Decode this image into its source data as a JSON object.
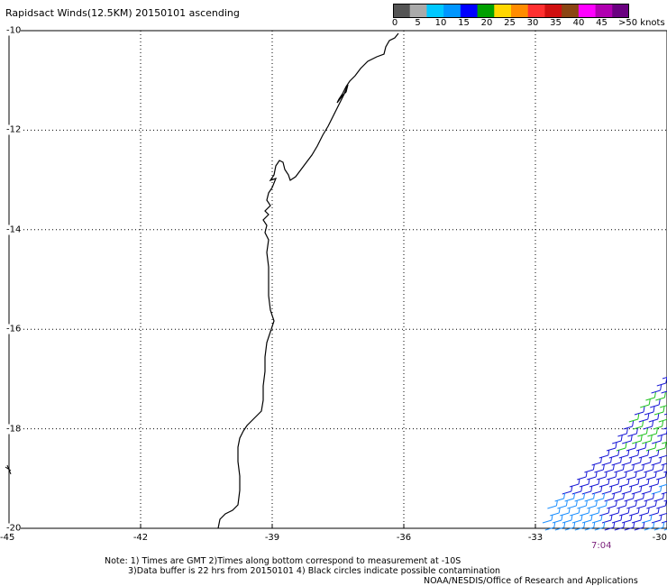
{
  "title": "Rapidsact Winds(12.5KM) 20150101 ascending",
  "colorbar": {
    "units": ">50 knots",
    "ticks": [
      "0",
      "5",
      "10",
      "15",
      "20",
      "25",
      "30",
      "35",
      "40",
      "45"
    ],
    "colors": [
      "#555555",
      "#aaaaaa",
      "#00c8ff",
      "#0096ff",
      "#0000ff",
      "#00a000",
      "#ffd700",
      "#ff8c00",
      "#ff3030",
      "#d01010",
      "#8b4513",
      "#ff00ff",
      "#b000b0",
      "#6a0080"
    ]
  },
  "map": {
    "lat_labels": [
      "-10",
      "-12",
      "-14",
      "-16",
      "-18",
      "-20"
    ],
    "lon_labels": [
      "-45",
      "-42",
      "-39",
      "-36",
      "-33",
      "-30"
    ],
    "lat_range": [
      -20,
      -10
    ],
    "lon_range": [
      -45,
      -30
    ],
    "grid": true
  },
  "time_label": "7:04",
  "notes": {
    "line1": "Note: 1) Times are GMT 2)Times along bottom correspond to measurement at -10S",
    "line2": "3)Data buffer is 22 hrs from 20150101 4) Black circles indicate possible contamination",
    "credit": "NOAA/NESDIS/Office of Research and Applications"
  },
  "wind_colors": {
    "blue": "#1a1ad6",
    "light_blue": "#1e90ff",
    "green": "#22c322"
  }
}
